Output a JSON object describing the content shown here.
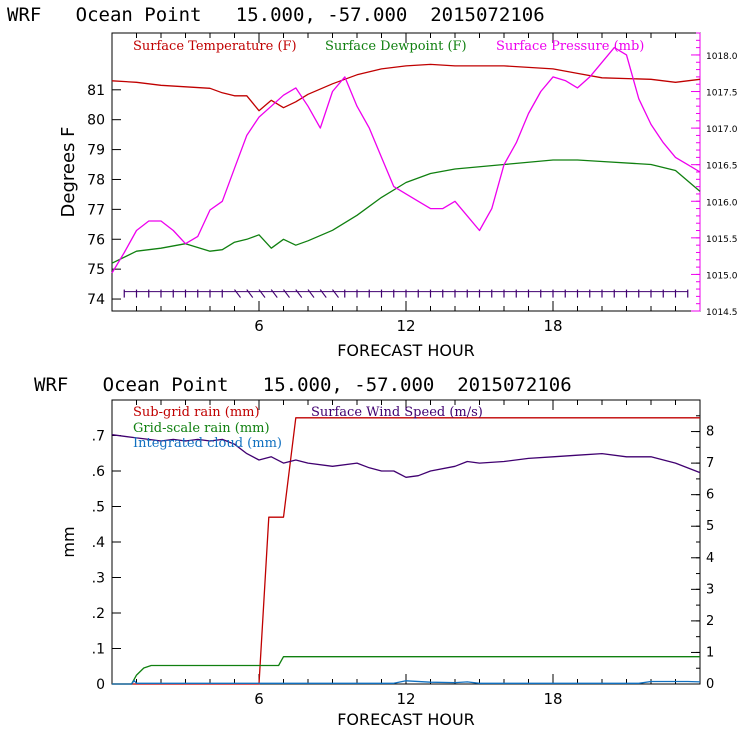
{
  "colors": {
    "temperature": "#c00000",
    "dewpoint": "#108010",
    "pressure": "#ee00ee",
    "wind": "#400070",
    "subgrid_rain": "#c00000",
    "gridscale_rain": "#108010",
    "cloud": "#1070c0",
    "axis": "#000000"
  },
  "chart_data": [
    {
      "type": "line",
      "title": "WRF   Ocean Point   15.000, -57.000  2015072106",
      "xlabel": "FORECAST HOUR",
      "ylabel": "Degrees F",
      "xlim": [
        0,
        24
      ],
      "ylim": [
        73.6,
        82.9
      ],
      "ylim_right": [
        1014.5,
        1018.3
      ],
      "x_ticks": [
        6,
        12,
        18
      ],
      "y_ticks": [
        74,
        75,
        76,
        77,
        78,
        79,
        80,
        81
      ],
      "y_ticks_right": [
        "1014.5",
        "1015.0",
        "1015.5",
        "1016.0",
        "1016.5",
        "1017.0",
        "1017.5",
        "1018.0"
      ],
      "legend_placement": "top",
      "series": [
        {
          "name": "Surface Temperature (F)",
          "color_key": "temperature",
          "axis": "left",
          "x": [
            0,
            1,
            2,
            3,
            4,
            4.5,
            5,
            5.5,
            6,
            6.5,
            7,
            7.5,
            8,
            9,
            10,
            11,
            12,
            13,
            14,
            16,
            18,
            19,
            20,
            22,
            23,
            24
          ],
          "values": [
            81.3,
            81.25,
            81.15,
            81.1,
            81.05,
            80.9,
            80.8,
            80.8,
            80.3,
            80.65,
            80.4,
            80.6,
            80.85,
            81.2,
            81.5,
            81.7,
            81.8,
            81.85,
            81.8,
            81.8,
            81.7,
            81.55,
            81.4,
            81.35,
            81.25,
            81.35
          ]
        },
        {
          "name": "Surface Dewpoint (F)",
          "color_key": "dewpoint",
          "axis": "left",
          "x": [
            0,
            1,
            2,
            3,
            4,
            4.5,
            5,
            5.5,
            6,
            6.5,
            7,
            7.5,
            8,
            9,
            10,
            11,
            12,
            13,
            14,
            16,
            18,
            19,
            20,
            22,
            23,
            24
          ],
          "values": [
            75.2,
            75.6,
            75.7,
            75.85,
            75.6,
            75.65,
            75.9,
            76.0,
            76.15,
            75.7,
            76.0,
            75.8,
            75.95,
            76.3,
            76.8,
            77.4,
            77.9,
            78.2,
            78.35,
            78.5,
            78.65,
            78.65,
            78.6,
            78.5,
            78.3,
            77.6
          ]
        },
        {
          "name": "Surface Pressure (mb)",
          "color_key": "pressure",
          "axis": "right",
          "x": [
            0,
            0.5,
            1,
            1.5,
            2,
            2.5,
            3,
            3.5,
            4,
            4.5,
            5,
            5.5,
            6,
            6.5,
            7,
            7.5,
            8,
            8.5,
            9,
            9.5,
            10,
            10.5,
            11,
            11.5,
            12,
            12.5,
            13,
            13.5,
            14,
            14.5,
            15,
            15.5,
            16,
            16.5,
            17,
            17.5,
            18,
            18.5,
            19,
            19.5,
            20,
            20.5,
            21,
            21.5,
            22,
            22.5,
            23,
            23.5,
            24
          ],
          "values": [
            1015.02,
            1015.3,
            1015.6,
            1015.73,
            1015.73,
            1015.6,
            1015.42,
            1015.52,
            1015.88,
            1016.0,
            1016.45,
            1016.9,
            1017.15,
            1017.3,
            1017.45,
            1017.55,
            1017.3,
            1017.0,
            1017.5,
            1017.7,
            1017.3,
            1017.0,
            1016.6,
            1016.2,
            1016.1,
            1016.0,
            1015.9,
            1015.9,
            1016.0,
            1015.8,
            1015.6,
            1015.9,
            1016.5,
            1016.8,
            1017.2,
            1017.5,
            1017.7,
            1017.65,
            1017.55,
            1017.7,
            1017.9,
            1018.1,
            1018.0,
            1017.4,
            1017.05,
            1016.8,
            1016.6,
            1016.5,
            1016.4
          ]
        }
      ],
      "wind_barbs": {
        "note_free": true,
        "hours": [
          0.5,
          1,
          1.5,
          2,
          2.5,
          3,
          3.5,
          4,
          4.5,
          5,
          5.5,
          6,
          6.5,
          7,
          7.5,
          8,
          8.5,
          9,
          9.5,
          10,
          10.5,
          11,
          11.5,
          12,
          12.5,
          13,
          13.5,
          14,
          14.5,
          15,
          15.5,
          16,
          16.5,
          17,
          17.5,
          18,
          18.5,
          19,
          19.5,
          20,
          20.5,
          21,
          21.5,
          22,
          22.5,
          23,
          23.5
        ],
        "value": 74.25
      }
    },
    {
      "type": "line",
      "title": "WRF   Ocean Point   15.000, -57.000  2015072106",
      "xlabel": "FORECAST HOUR",
      "ylabel": "mm",
      "xlim": [
        0,
        24
      ],
      "ylim": [
        0,
        0.8
      ],
      "ylim_right": [
        0,
        9
      ],
      "x_ticks": [
        6,
        12,
        18
      ],
      "y_ticks": [
        "0",
        ".1",
        ".2",
        ".3",
        ".4",
        ".5",
        ".6",
        ".7"
      ],
      "y_ticks_right": [
        "0",
        "1",
        "2",
        "3",
        "4",
        "5",
        "6",
        "7",
        "8"
      ],
      "legend_placement": "top-left",
      "series": [
        {
          "name": "Sub-grid rain (mm)",
          "color_key": "subgrid_rain",
          "axis": "left",
          "x": [
            0,
            6,
            6.4,
            7.0,
            7.5,
            24
          ],
          "values": [
            0,
            0,
            0.47,
            0.47,
            0.75,
            0.75
          ]
        },
        {
          "name": "Grid-scale rain (mm)",
          "color_key": "gridscale_rain",
          "axis": "left",
          "x": [
            0,
            0.8,
            1.0,
            1.3,
            1.6,
            6.8,
            7.0,
            24
          ],
          "values": [
            0,
            0,
            0.025,
            0.045,
            0.052,
            0.052,
            0.077,
            0.077
          ]
        },
        {
          "name": "Integrated cloud (mm)",
          "color_key": "cloud",
          "axis": "left",
          "x": [
            0,
            0.8,
            0.9,
            1.0,
            4.0,
            11.5,
            12.0,
            13.0,
            14.0,
            14.5,
            15.0,
            21.5,
            22.0,
            23.5,
            24
          ],
          "values": [
            0,
            0,
            0.01,
            0.002,
            0.002,
            0.002,
            0.009,
            0.005,
            0.004,
            0.006,
            0.002,
            0.002,
            0.007,
            0.007,
            0.006
          ]
        },
        {
          "name": "Surface Wind Speed (m/s)",
          "color_key": "wind",
          "axis": "right",
          "x": [
            0,
            1,
            1.5,
            2,
            2.5,
            3,
            3.5,
            4,
            4.5,
            5,
            5.5,
            6,
            6.5,
            7,
            7.5,
            8,
            9,
            10,
            10.5,
            11,
            11.5,
            12,
            12.5,
            13,
            14,
            14.5,
            15,
            16,
            17,
            18,
            19,
            20,
            21,
            22,
            23,
            24
          ],
          "values": [
            7.9,
            7.8,
            7.75,
            7.7,
            7.75,
            7.7,
            7.75,
            7.7,
            7.75,
            7.6,
            7.3,
            7.1,
            7.2,
            7.0,
            7.1,
            7.0,
            6.9,
            7.0,
            6.85,
            6.75,
            6.75,
            6.55,
            6.6,
            6.75,
            6.9,
            7.05,
            7.0,
            7.05,
            7.15,
            7.2,
            7.25,
            7.3,
            7.2,
            7.2,
            7.0,
            6.7
          ]
        }
      ]
    }
  ]
}
